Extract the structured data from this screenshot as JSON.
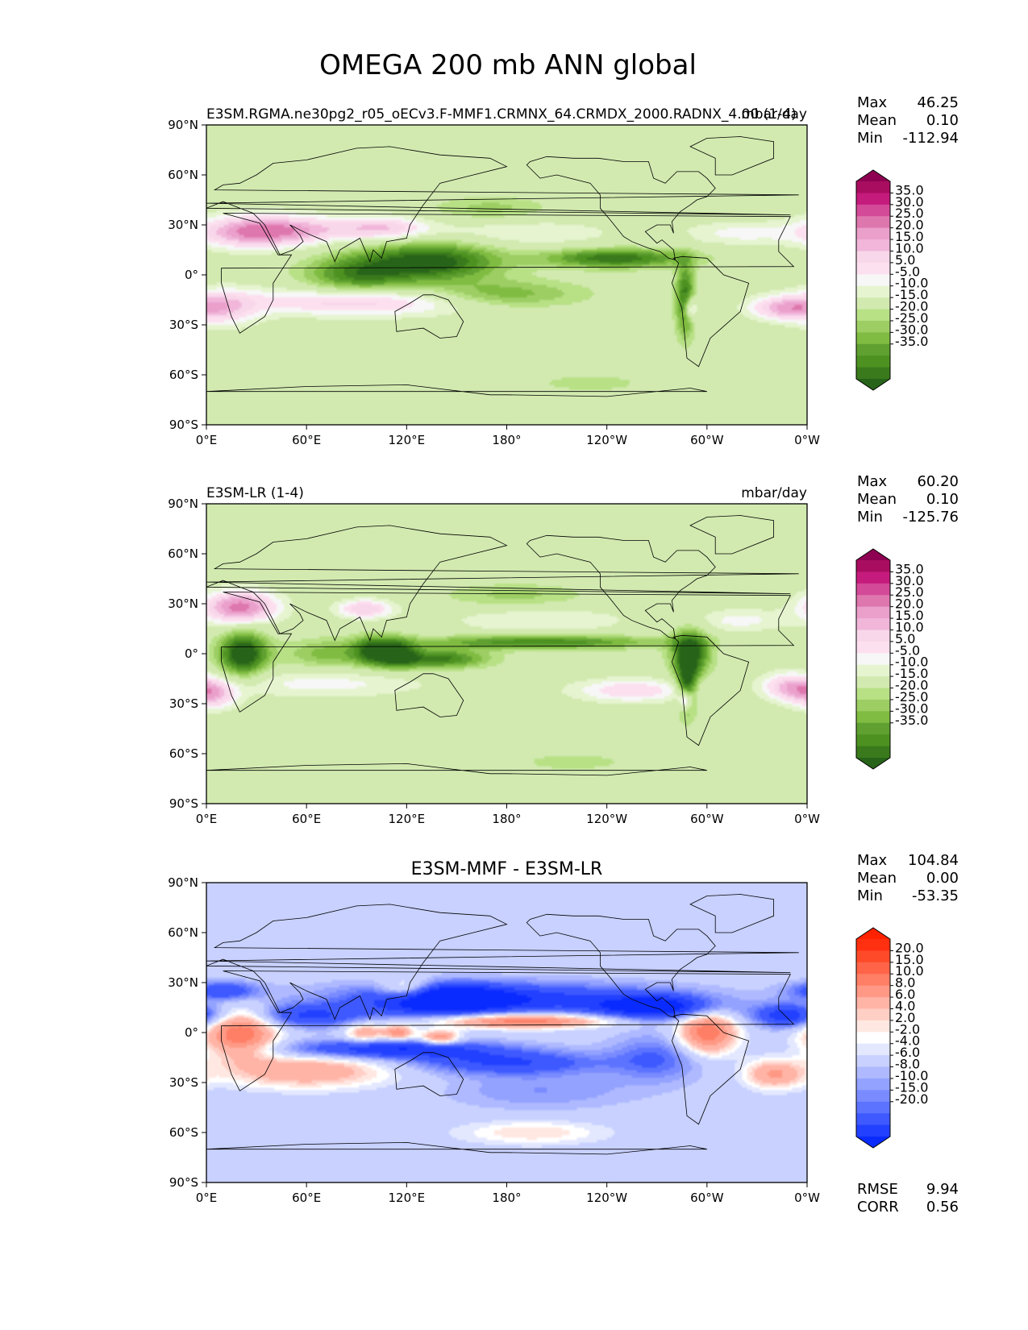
{
  "figure_title": "OMEGA 200 mb ANN global",
  "chart_data": [
    {
      "type": "heatmap",
      "map_projection": "PlateCarree",
      "left_title": "E3SM.RGMA.ne30pg2_r05_oECv3.F-MMF1.CRMNX_64.CRMDX_2000.RADNX_4.00 (1-4)",
      "center_title": "",
      "units": "mbar/day",
      "stats": [
        {
          "label": "Max",
          "value": "46.25"
        },
        {
          "label": "Mean",
          "value": "0.10"
        },
        {
          "label": "Min",
          "value": "-112.94"
        }
      ],
      "colorbar": {
        "colormap": "PiYG",
        "extend": "both",
        "levels": [
          35.0,
          30.0,
          25.0,
          20.0,
          15.0,
          10.0,
          5.0,
          -5.0,
          -10.0,
          -15.0,
          -20.0,
          -25.0,
          -30.0,
          -35.0
        ],
        "tick_labels": [
          "35.0",
          "30.0",
          "25.0",
          "20.0",
          "15.0",
          "10.0",
          "5.0",
          "-5.0",
          "-10.0",
          "-15.0",
          "-20.0",
          "-25.0",
          "-30.0",
          "-35.0"
        ],
        "colors": [
          "#8e0152",
          "#a80d5f",
          "#c51b7d",
          "#d34a98",
          "#de77ae",
          "#eaa0cb",
          "#f1b6da",
          "#f8d7ea",
          "#fde0ef",
          "#f7f7f7",
          "#e6f5d0",
          "#d2eab0",
          "#b8e186",
          "#9dce64",
          "#7fbc41",
          "#5fa031",
          "#4d9221",
          "#3a7a1c",
          "#276419"
        ]
      },
      "xticks": [
        "0°E",
        "60°E",
        "120°E",
        "180°",
        "120°W",
        "60°W",
        "0°W"
      ],
      "yticks": [
        "90°N",
        "60°N",
        "30°N",
        "0°",
        "30°S",
        "60°S",
        "90°S"
      ],
      "xlim": [
        0,
        360
      ],
      "ylim": [
        -90,
        90
      ],
      "features": [
        {
          "lon": 27,
          "lat": 26,
          "value": 35,
          "sx": 22,
          "sy": 7
        },
        {
          "lon": 60,
          "lat": 27,
          "value": 18,
          "sx": 20,
          "sy": 6
        },
        {
          "lon": 105,
          "lat": 28,
          "value": 25,
          "sx": 20,
          "sy": 5
        },
        {
          "lon": 90,
          "lat": 0,
          "value": -28,
          "sx": 22,
          "sy": 8
        },
        {
          "lon": 135,
          "lat": 8,
          "value": -40,
          "sx": 28,
          "sy": 8
        },
        {
          "lon": 175,
          "lat": -12,
          "value": -22,
          "sx": 35,
          "sy": 6
        },
        {
          "lon": 245,
          "lat": 10,
          "value": -35,
          "sx": 30,
          "sy": 4
        },
        {
          "lon": 287,
          "lat": -15,
          "value": -35,
          "sx": 4,
          "sy": 15
        },
        {
          "lon": 290,
          "lat": -20,
          "value": 30,
          "sx": 3,
          "sy": 5
        },
        {
          "lon": 95,
          "lat": -16,
          "value": 25,
          "sx": 55,
          "sy": 6
        },
        {
          "lon": 10,
          "lat": -20,
          "value": 20,
          "sx": 15,
          "sy": 8
        },
        {
          "lon": 345,
          "lat": -20,
          "value": 25,
          "sx": 14,
          "sy": 5
        },
        {
          "lon": 190,
          "lat": 25,
          "value": 10,
          "sx": 40,
          "sy": 6
        },
        {
          "lon": 170,
          "lat": 40,
          "value": -12,
          "sx": 25,
          "sy": 5
        },
        {
          "lon": 320,
          "lat": 25,
          "value": 12,
          "sx": 25,
          "sy": 5
        },
        {
          "lon": 230,
          "lat": -65,
          "value": -8,
          "sx": 25,
          "sy": 4
        }
      ]
    },
    {
      "type": "heatmap",
      "map_projection": "PlateCarree",
      "left_title": "E3SM-LR (1-4)",
      "center_title": "",
      "units": "mbar/day",
      "stats": [
        {
          "label": "Max",
          "value": "60.20"
        },
        {
          "label": "Mean",
          "value": "0.10"
        },
        {
          "label": "Min",
          "value": "-125.76"
        }
      ],
      "colorbar": {
        "colormap": "PiYG",
        "extend": "both",
        "levels": [
          35.0,
          30.0,
          25.0,
          20.0,
          15.0,
          10.0,
          5.0,
          -5.0,
          -10.0,
          -15.0,
          -20.0,
          -25.0,
          -30.0,
          -35.0
        ],
        "tick_labels": [
          "35.0",
          "30.0",
          "25.0",
          "20.0",
          "15.0",
          "10.0",
          "5.0",
          "-5.0",
          "-10.0",
          "-15.0",
          "-20.0",
          "-25.0",
          "-30.0",
          "-35.0"
        ],
        "colors": [
          "#8e0152",
          "#a80d5f",
          "#c51b7d",
          "#d34a98",
          "#de77ae",
          "#eaa0cb",
          "#f1b6da",
          "#f8d7ea",
          "#fde0ef",
          "#f7f7f7",
          "#e6f5d0",
          "#d2eab0",
          "#b8e186",
          "#9dce64",
          "#7fbc41",
          "#5fa031",
          "#4d9221",
          "#3a7a1c",
          "#276419"
        ]
      },
      "xticks": [
        "0°E",
        "60°E",
        "120°E",
        "180°",
        "120°W",
        "60°W",
        "0°W"
      ],
      "yticks": [
        "90°N",
        "60°N",
        "30°N",
        "0°",
        "30°S",
        "60°S",
        "90°S"
      ],
      "xlim": [
        0,
        360
      ],
      "ylim": [
        -90,
        90
      ],
      "features": [
        {
          "lon": 20,
          "lat": 28,
          "value": 38,
          "sx": 16,
          "sy": 7
        },
        {
          "lon": 22,
          "lat": 0,
          "value": -45,
          "sx": 10,
          "sy": 9
        },
        {
          "lon": 95,
          "lat": 27,
          "value": 25,
          "sx": 12,
          "sy": 4
        },
        {
          "lon": 100,
          "lat": 2,
          "value": -30,
          "sx": 8,
          "sy": 6
        },
        {
          "lon": 115,
          "lat": 0,
          "value": -35,
          "sx": 8,
          "sy": 6
        },
        {
          "lon": 75,
          "lat": 0,
          "value": -18,
          "sx": 20,
          "sy": 6
        },
        {
          "lon": 140,
          "lat": -3,
          "value": -32,
          "sx": 20,
          "sy": 4
        },
        {
          "lon": 200,
          "lat": 7,
          "value": -30,
          "sx": 50,
          "sy": 3
        },
        {
          "lon": 290,
          "lat": 0,
          "value": -40,
          "sx": 8,
          "sy": 10
        },
        {
          "lon": 288,
          "lat": -20,
          "value": -35,
          "sx": 4,
          "sy": 12
        },
        {
          "lon": 287,
          "lat": -28,
          "value": 35,
          "sx": 3,
          "sy": 4
        },
        {
          "lon": 70,
          "lat": -18,
          "value": 12,
          "sx": 45,
          "sy": 6
        },
        {
          "lon": 5,
          "lat": -25,
          "value": 22,
          "sx": 10,
          "sy": 6
        },
        {
          "lon": 350,
          "lat": -20,
          "value": 25,
          "sx": 12,
          "sy": 6
        },
        {
          "lon": 255,
          "lat": -22,
          "value": 20,
          "sx": 25,
          "sy": 5
        },
        {
          "lon": 200,
          "lat": 20,
          "value": 10,
          "sx": 40,
          "sy": 6
        },
        {
          "lon": 185,
          "lat": 35,
          "value": -12,
          "sx": 30,
          "sy": 5
        },
        {
          "lon": 320,
          "lat": 20,
          "value": 12,
          "sx": 20,
          "sy": 5
        },
        {
          "lon": 220,
          "lat": -65,
          "value": -8,
          "sx": 25,
          "sy": 4
        }
      ]
    },
    {
      "type": "heatmap",
      "map_projection": "PlateCarree",
      "left_title": "",
      "center_title": "E3SM-MMF - E3SM-LR",
      "units": "",
      "stats": [
        {
          "label": "Max",
          "value": "104.84"
        },
        {
          "label": "Mean",
          "value": "0.00"
        },
        {
          "label": "Min",
          "value": "-53.35"
        }
      ],
      "bottom_stats": [
        {
          "label": "RMSE",
          "value": "9.94"
        },
        {
          "label": "CORR",
          "value": "0.56"
        }
      ],
      "colorbar": {
        "colormap": "bwr",
        "extend": "both",
        "levels": [
          20.0,
          15.0,
          10.0,
          8.0,
          6.0,
          4.0,
          2.0,
          -2.0,
          -4.0,
          -6.0,
          -8.0,
          -10.0,
          -15.0,
          -20.0
        ],
        "tick_labels": [
          "20.0",
          "15.0",
          "10.0",
          "8.0",
          "6.0",
          "4.0",
          "2.0",
          "-2.0",
          "-4.0",
          "-6.0",
          "-8.0",
          "-10.0",
          "-15.0",
          "-20.0"
        ],
        "colors": [
          "#ff2200",
          "#ff3010",
          "#ff4a2a",
          "#ff6448",
          "#ff7e66",
          "#ff9985",
          "#ffb4a6",
          "#ffcfc6",
          "#ffe8e2",
          "#ffffff",
          "#e3e8ff",
          "#c8d1ff",
          "#aeb9ff",
          "#93a2ff",
          "#798bff",
          "#5c73ff",
          "#3d59ff",
          "#2240ff",
          "#0a2bff"
        ]
      },
      "xticks": [
        "0°E",
        "60°E",
        "120°E",
        "180°",
        "120°W",
        "60°W",
        "0°W"
      ],
      "yticks": [
        "90°N",
        "60°N",
        "30°N",
        "0°",
        "30°S",
        "60°S",
        "90°S"
      ],
      "xlim": [
        0,
        360
      ],
      "ylim": [
        -90,
        90
      ],
      "features": [
        {
          "lon": 20,
          "lat": 0,
          "value": 25,
          "sx": 15,
          "sy": 10
        },
        {
          "lon": 60,
          "lat": -23,
          "value": 15,
          "sx": 35,
          "sy": 7
        },
        {
          "lon": 180,
          "lat": 20,
          "value": -18,
          "sx": 70,
          "sy": 7
        },
        {
          "lon": 140,
          "lat": 20,
          "value": -25,
          "sx": 25,
          "sy": 6
        },
        {
          "lon": 190,
          "lat": 7,
          "value": 25,
          "sx": 35,
          "sy": 3
        },
        {
          "lon": 300,
          "lat": 0,
          "value": 25,
          "sx": 12,
          "sy": 9
        },
        {
          "lon": 270,
          "lat": 15,
          "value": -22,
          "sx": 25,
          "sy": 5
        },
        {
          "lon": 120,
          "lat": 25,
          "value": 18,
          "sx": 12,
          "sy": 5
        },
        {
          "lon": 95,
          "lat": 0,
          "value": 15,
          "sx": 8,
          "sy": 4
        },
        {
          "lon": 115,
          "lat": 0,
          "value": 20,
          "sx": 6,
          "sy": 3
        },
        {
          "lon": 140,
          "lat": -3,
          "value": 20,
          "sx": 8,
          "sy": 3
        },
        {
          "lon": 110,
          "lat": -10,
          "value": -20,
          "sx": 45,
          "sy": 4
        },
        {
          "lon": 180,
          "lat": -18,
          "value": -15,
          "sx": 40,
          "sy": 5
        },
        {
          "lon": 340,
          "lat": -25,
          "value": 15,
          "sx": 12,
          "sy": 6
        },
        {
          "lon": 350,
          "lat": 10,
          "value": -20,
          "sx": 15,
          "sy": 5
        },
        {
          "lon": 60,
          "lat": 10,
          "value": -15,
          "sx": 25,
          "sy": 5
        },
        {
          "lon": 10,
          "lat": 25,
          "value": -15,
          "sx": 15,
          "sy": 4
        },
        {
          "lon": 195,
          "lat": -60,
          "value": 8,
          "sx": 30,
          "sy": 5
        },
        {
          "lon": 200,
          "lat": -35,
          "value": -6,
          "sx": 40,
          "sy": 8
        },
        {
          "lon": 270,
          "lat": -15,
          "value": -10,
          "sx": 20,
          "sy": 10
        }
      ]
    }
  ]
}
